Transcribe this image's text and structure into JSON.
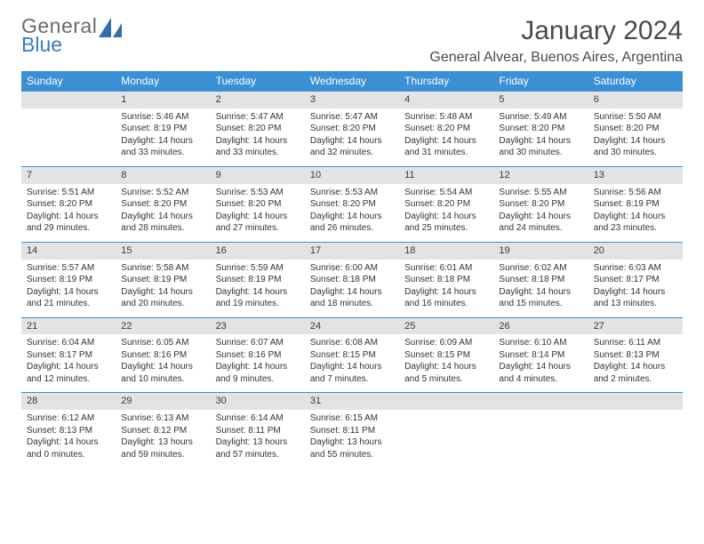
{
  "logo": {
    "line1": "General",
    "line2": "Blue"
  },
  "title": "January 2024",
  "location": "General Alvear, Buenos Aires, Argentina",
  "colors": {
    "header_bg": "#3b8fd4",
    "header_text": "#ffffff",
    "daynum_bg": "#e3e3e3",
    "daynum_border": "#3b8fd4",
    "logo_gray": "#6b6b6b",
    "logo_blue": "#3b7bbf",
    "text": "#333333",
    "bg": "#ffffff"
  },
  "typography": {
    "title_fontsize": 30,
    "location_fontsize": 16,
    "weekday_fontsize": 12,
    "daynum_fontsize": 11,
    "info_fontsize": 10
  },
  "weekdays": [
    "Sunday",
    "Monday",
    "Tuesday",
    "Wednesday",
    "Thursday",
    "Friday",
    "Saturday"
  ],
  "weeks": [
    [
      {
        "n": "",
        "sr": "",
        "ss": "",
        "dl": ""
      },
      {
        "n": "1",
        "sr": "Sunrise: 5:46 AM",
        "ss": "Sunset: 8:19 PM",
        "dl": "Daylight: 14 hours and 33 minutes."
      },
      {
        "n": "2",
        "sr": "Sunrise: 5:47 AM",
        "ss": "Sunset: 8:20 PM",
        "dl": "Daylight: 14 hours and 33 minutes."
      },
      {
        "n": "3",
        "sr": "Sunrise: 5:47 AM",
        "ss": "Sunset: 8:20 PM",
        "dl": "Daylight: 14 hours and 32 minutes."
      },
      {
        "n": "4",
        "sr": "Sunrise: 5:48 AM",
        "ss": "Sunset: 8:20 PM",
        "dl": "Daylight: 14 hours and 31 minutes."
      },
      {
        "n": "5",
        "sr": "Sunrise: 5:49 AM",
        "ss": "Sunset: 8:20 PM",
        "dl": "Daylight: 14 hours and 30 minutes."
      },
      {
        "n": "6",
        "sr": "Sunrise: 5:50 AM",
        "ss": "Sunset: 8:20 PM",
        "dl": "Daylight: 14 hours and 30 minutes."
      }
    ],
    [
      {
        "n": "7",
        "sr": "Sunrise: 5:51 AM",
        "ss": "Sunset: 8:20 PM",
        "dl": "Daylight: 14 hours and 29 minutes."
      },
      {
        "n": "8",
        "sr": "Sunrise: 5:52 AM",
        "ss": "Sunset: 8:20 PM",
        "dl": "Daylight: 14 hours and 28 minutes."
      },
      {
        "n": "9",
        "sr": "Sunrise: 5:53 AM",
        "ss": "Sunset: 8:20 PM",
        "dl": "Daylight: 14 hours and 27 minutes."
      },
      {
        "n": "10",
        "sr": "Sunrise: 5:53 AM",
        "ss": "Sunset: 8:20 PM",
        "dl": "Daylight: 14 hours and 26 minutes."
      },
      {
        "n": "11",
        "sr": "Sunrise: 5:54 AM",
        "ss": "Sunset: 8:20 PM",
        "dl": "Daylight: 14 hours and 25 minutes."
      },
      {
        "n": "12",
        "sr": "Sunrise: 5:55 AM",
        "ss": "Sunset: 8:20 PM",
        "dl": "Daylight: 14 hours and 24 minutes."
      },
      {
        "n": "13",
        "sr": "Sunrise: 5:56 AM",
        "ss": "Sunset: 8:19 PM",
        "dl": "Daylight: 14 hours and 23 minutes."
      }
    ],
    [
      {
        "n": "14",
        "sr": "Sunrise: 5:57 AM",
        "ss": "Sunset: 8:19 PM",
        "dl": "Daylight: 14 hours and 21 minutes."
      },
      {
        "n": "15",
        "sr": "Sunrise: 5:58 AM",
        "ss": "Sunset: 8:19 PM",
        "dl": "Daylight: 14 hours and 20 minutes."
      },
      {
        "n": "16",
        "sr": "Sunrise: 5:59 AM",
        "ss": "Sunset: 8:19 PM",
        "dl": "Daylight: 14 hours and 19 minutes."
      },
      {
        "n": "17",
        "sr": "Sunrise: 6:00 AM",
        "ss": "Sunset: 8:18 PM",
        "dl": "Daylight: 14 hours and 18 minutes."
      },
      {
        "n": "18",
        "sr": "Sunrise: 6:01 AM",
        "ss": "Sunset: 8:18 PM",
        "dl": "Daylight: 14 hours and 16 minutes."
      },
      {
        "n": "19",
        "sr": "Sunrise: 6:02 AM",
        "ss": "Sunset: 8:18 PM",
        "dl": "Daylight: 14 hours and 15 minutes."
      },
      {
        "n": "20",
        "sr": "Sunrise: 6:03 AM",
        "ss": "Sunset: 8:17 PM",
        "dl": "Daylight: 14 hours and 13 minutes."
      }
    ],
    [
      {
        "n": "21",
        "sr": "Sunrise: 6:04 AM",
        "ss": "Sunset: 8:17 PM",
        "dl": "Daylight: 14 hours and 12 minutes."
      },
      {
        "n": "22",
        "sr": "Sunrise: 6:05 AM",
        "ss": "Sunset: 8:16 PM",
        "dl": "Daylight: 14 hours and 10 minutes."
      },
      {
        "n": "23",
        "sr": "Sunrise: 6:07 AM",
        "ss": "Sunset: 8:16 PM",
        "dl": "Daylight: 14 hours and 9 minutes."
      },
      {
        "n": "24",
        "sr": "Sunrise: 6:08 AM",
        "ss": "Sunset: 8:15 PM",
        "dl": "Daylight: 14 hours and 7 minutes."
      },
      {
        "n": "25",
        "sr": "Sunrise: 6:09 AM",
        "ss": "Sunset: 8:15 PM",
        "dl": "Daylight: 14 hours and 5 minutes."
      },
      {
        "n": "26",
        "sr": "Sunrise: 6:10 AM",
        "ss": "Sunset: 8:14 PM",
        "dl": "Daylight: 14 hours and 4 minutes."
      },
      {
        "n": "27",
        "sr": "Sunrise: 6:11 AM",
        "ss": "Sunset: 8:13 PM",
        "dl": "Daylight: 14 hours and 2 minutes."
      }
    ],
    [
      {
        "n": "28",
        "sr": "Sunrise: 6:12 AM",
        "ss": "Sunset: 8:13 PM",
        "dl": "Daylight: 14 hours and 0 minutes."
      },
      {
        "n": "29",
        "sr": "Sunrise: 6:13 AM",
        "ss": "Sunset: 8:12 PM",
        "dl": "Daylight: 13 hours and 59 minutes."
      },
      {
        "n": "30",
        "sr": "Sunrise: 6:14 AM",
        "ss": "Sunset: 8:11 PM",
        "dl": "Daylight: 13 hours and 57 minutes."
      },
      {
        "n": "31",
        "sr": "Sunrise: 6:15 AM",
        "ss": "Sunset: 8:11 PM",
        "dl": "Daylight: 13 hours and 55 minutes."
      },
      {
        "n": "",
        "sr": "",
        "ss": "",
        "dl": ""
      },
      {
        "n": "",
        "sr": "",
        "ss": "",
        "dl": ""
      },
      {
        "n": "",
        "sr": "",
        "ss": "",
        "dl": ""
      }
    ]
  ]
}
